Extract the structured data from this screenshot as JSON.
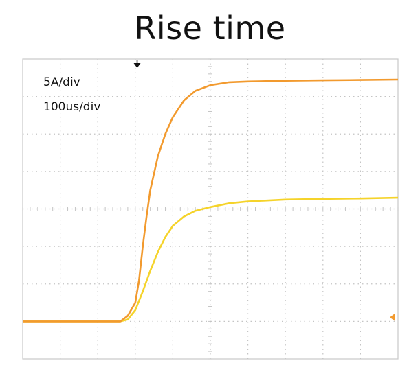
{
  "chart_data": {
    "type": "line",
    "title": "Rise time",
    "annotations": [
      "5A/div",
      "100us/div"
    ],
    "grid": true,
    "divisions": {
      "x": 10,
      "y": 8
    },
    "xlim": [
      0,
      10
    ],
    "ylim": [
      0,
      8
    ],
    "series": [
      {
        "color": "#F29A2E",
        "x": [
          0,
          2.6,
          2.8,
          3.0,
          3.1,
          3.2,
          3.3,
          3.4,
          3.6,
          3.8,
          4.0,
          4.3,
          4.6,
          5.0,
          5.5,
          6.0,
          7.0,
          8.0,
          9.0,
          10.0
        ],
        "y": [
          1.0,
          1.0,
          1.15,
          1.5,
          2.1,
          3.0,
          3.8,
          4.5,
          5.4,
          6.0,
          6.45,
          6.9,
          7.15,
          7.3,
          7.38,
          7.4,
          7.42,
          7.43,
          7.44,
          7.45
        ]
      },
      {
        "color": "#F5D32A",
        "x": [
          0,
          2.6,
          2.8,
          3.0,
          3.2,
          3.4,
          3.6,
          3.8,
          4.0,
          4.3,
          4.6,
          5.0,
          5.5,
          6.0,
          7.0,
          8.0,
          9.0,
          10.0
        ],
        "y": [
          1.0,
          1.0,
          1.05,
          1.3,
          1.8,
          2.35,
          2.85,
          3.25,
          3.55,
          3.8,
          3.95,
          4.05,
          4.15,
          4.2,
          4.25,
          4.27,
          4.28,
          4.3
        ]
      }
    ],
    "markers": {
      "trigger_x": 3.05,
      "ground_y": 1.0
    }
  }
}
